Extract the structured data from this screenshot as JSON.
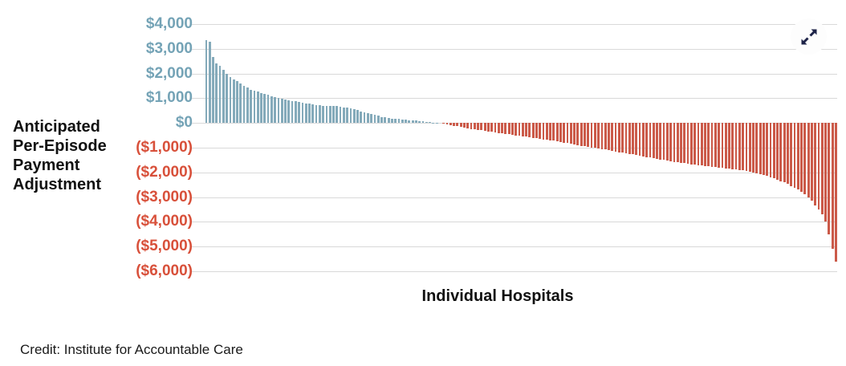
{
  "chart": {
    "y_axis_title": "Anticipated\nPer-Episode\nPayment\nAdjustment",
    "x_axis_title": "Individual Hospitals",
    "credit": "Credit: Institute for Accountable Care"
  },
  "icons": {
    "expand": "expand-diagonal-arrows"
  },
  "colors": {
    "positive_bar": "#84aaba",
    "negative_bar": "#cb5a49",
    "positive_tick_label": "#74a3b6",
    "negative_tick_label": "#d8503a",
    "gridline": "#d9d9d9",
    "text": "#111111",
    "expand_arrow": "#1d2348"
  },
  "chart_data": {
    "type": "bar",
    "title": "",
    "xlabel": "Individual Hospitals",
    "ylabel": "Anticipated Per-Episode Payment Adjustment",
    "ylim": [
      -6000,
      4000
    ],
    "grid": true,
    "legend": false,
    "yticks": [
      {
        "label": "$4,000",
        "value": 4000
      },
      {
        "label": "$3,000",
        "value": 3000
      },
      {
        "label": "$2,000",
        "value": 2000
      },
      {
        "label": "$1,000",
        "value": 1000
      },
      {
        "label": "$0",
        "value": 0
      },
      {
        "label": "($1,000)",
        "value": -1000
      },
      {
        "label": "($2,000)",
        "value": -2000
      },
      {
        "label": "($3,000)",
        "value": -3000
      },
      {
        "label": "($4,000)",
        "value": -4000
      },
      {
        "label": "($5,000)",
        "value": -5000
      },
      {
        "label": "($6,000)",
        "value": -6000
      }
    ],
    "values": [
      3340,
      3280,
      2680,
      2410,
      2300,
      2140,
      1980,
      1860,
      1760,
      1700,
      1600,
      1500,
      1420,
      1350,
      1300,
      1260,
      1220,
      1170,
      1130,
      1090,
      1050,
      1010,
      975,
      945,
      920,
      895,
      870,
      845,
      820,
      800,
      775,
      750,
      730,
      715,
      700,
      695,
      690,
      685,
      680,
      660,
      635,
      610,
      580,
      550,
      510,
      470,
      430,
      390,
      350,
      315,
      285,
      250,
      220,
      200,
      185,
      170,
      158,
      148,
      135,
      120,
      105,
      92,
      78,
      65,
      50,
      35,
      22,
      10,
      0,
      -18,
      -55,
      -100,
      -120,
      -140,
      -170,
      -200,
      -220,
      -240,
      -260,
      -280,
      -300,
      -320,
      -340,
      -360,
      -380,
      -400,
      -420,
      -440,
      -460,
      -480,
      -500,
      -520,
      -540,
      -560,
      -580,
      -600,
      -620,
      -640,
      -660,
      -680,
      -700,
      -720,
      -745,
      -770,
      -795,
      -820,
      -845,
      -870,
      -895,
      -920,
      -950,
      -970,
      -990,
      -1010,
      -1030,
      -1050,
      -1075,
      -1100,
      -1125,
      -1150,
      -1180,
      -1200,
      -1225,
      -1250,
      -1275,
      -1300,
      -1325,
      -1350,
      -1375,
      -1400,
      -1430,
      -1455,
      -1480,
      -1500,
      -1525,
      -1550,
      -1570,
      -1590,
      -1610,
      -1630,
      -1650,
      -1670,
      -1690,
      -1705,
      -1720,
      -1740,
      -1755,
      -1770,
      -1785,
      -1800,
      -1820,
      -1835,
      -1850,
      -1865,
      -1880,
      -1900,
      -1920,
      -1945,
      -1970,
      -2000,
      -2035,
      -2070,
      -2110,
      -2150,
      -2200,
      -2250,
      -2300,
      -2350,
      -2400,
      -2470,
      -2550,
      -2620,
      -2700,
      -2790,
      -2880,
      -3000,
      -3150,
      -3350,
      -3500,
      -3700,
      -4000,
      -4500,
      -5100,
      -5600
    ]
  }
}
